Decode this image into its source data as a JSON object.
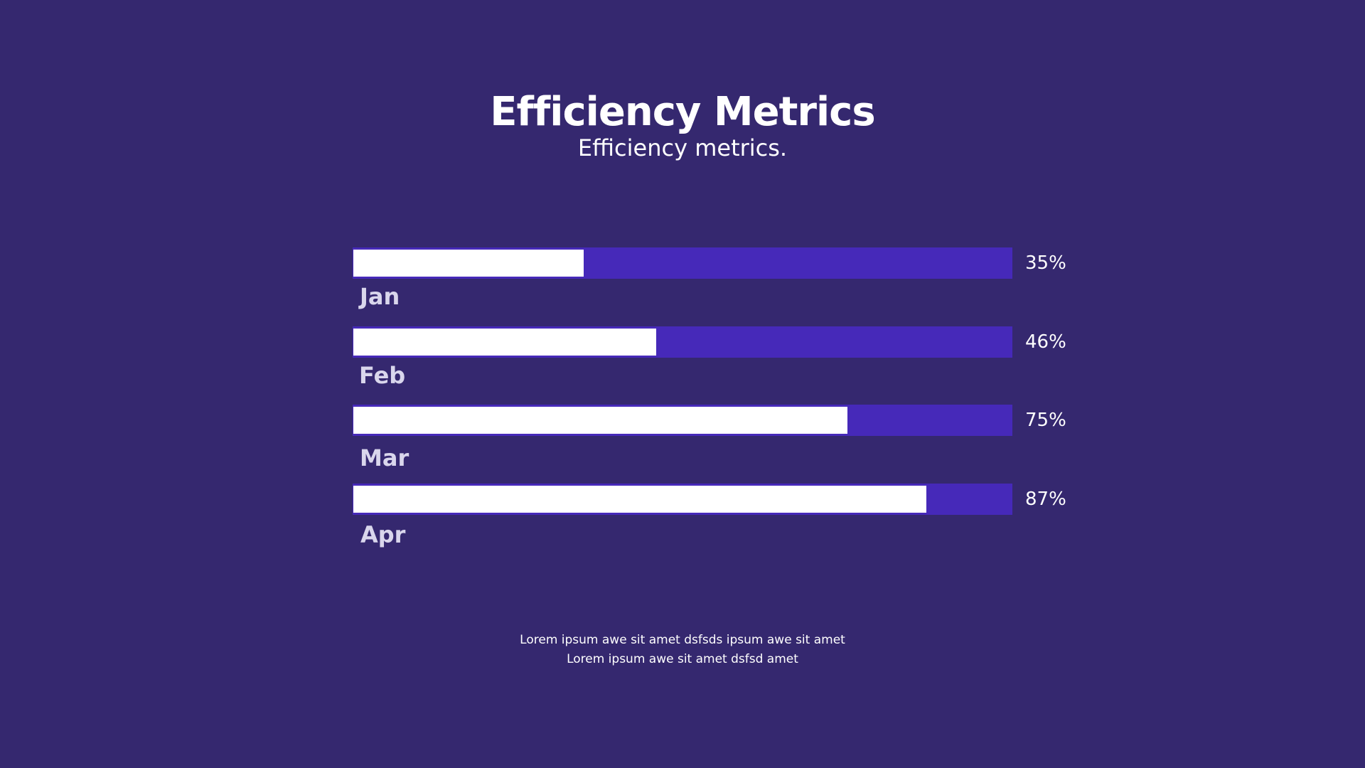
{
  "header": {
    "title": "Efficiency Metrics",
    "subtitle": "Efficiency metrics."
  },
  "colors": {
    "background": "#35286f",
    "track": "#4629b9",
    "fill": "#ffffff"
  },
  "chart_data": {
    "type": "bar",
    "orientation": "horizontal",
    "title": "Efficiency Metrics",
    "subtitle": "Efficiency metrics.",
    "categories": [
      "Jan",
      "Feb",
      "Mar",
      "Apr"
    ],
    "values": [
      35,
      46,
      75,
      87
    ],
    "value_labels": [
      "35%",
      "46%",
      "75%",
      "87%"
    ],
    "xlim": [
      0,
      100
    ],
    "unit": "%",
    "legend": "none",
    "grid": false
  },
  "footnote": {
    "line1": "Lorem ipsum awe sit amet dsfsds ipsum awe sit amet",
    "line2": "Lorem ipsum awe sit amet dsfsd amet"
  }
}
